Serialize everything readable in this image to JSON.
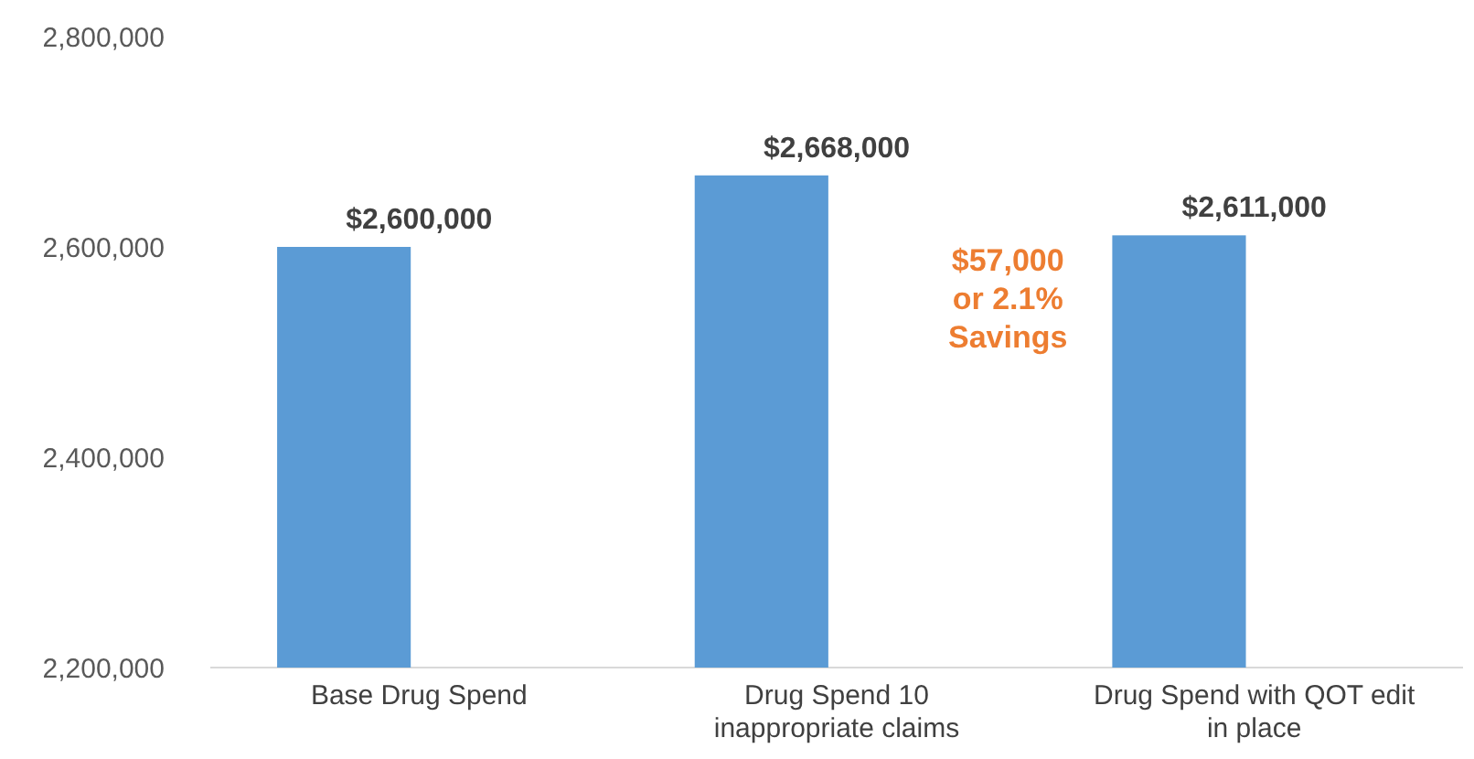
{
  "chart_data": {
    "type": "bar",
    "categories": [
      "Base Drug Spend",
      "Drug Spend 10 inappropriate claims",
      "Drug Spend with QOT edit in place"
    ],
    "values": [
      2600000,
      2668000,
      2611000
    ],
    "color": "#5b9bd5",
    "value_labels": [
      "$2,600,000",
      "$2,668,000",
      "$2,611,000"
    ],
    "ylim": [
      2200000,
      2800000
    ],
    "yticks": [
      {
        "value": 2200000,
        "label": "2,200,000"
      },
      {
        "value": 2400000,
        "label": "2,400,000"
      },
      {
        "value": 2600000,
        "label": "2,600,000"
      },
      {
        "value": 2800000,
        "label": "2,800,000"
      }
    ],
    "annotations": [
      "$57,000\nor 2.1%\nSavings"
    ],
    "grid": false
  }
}
